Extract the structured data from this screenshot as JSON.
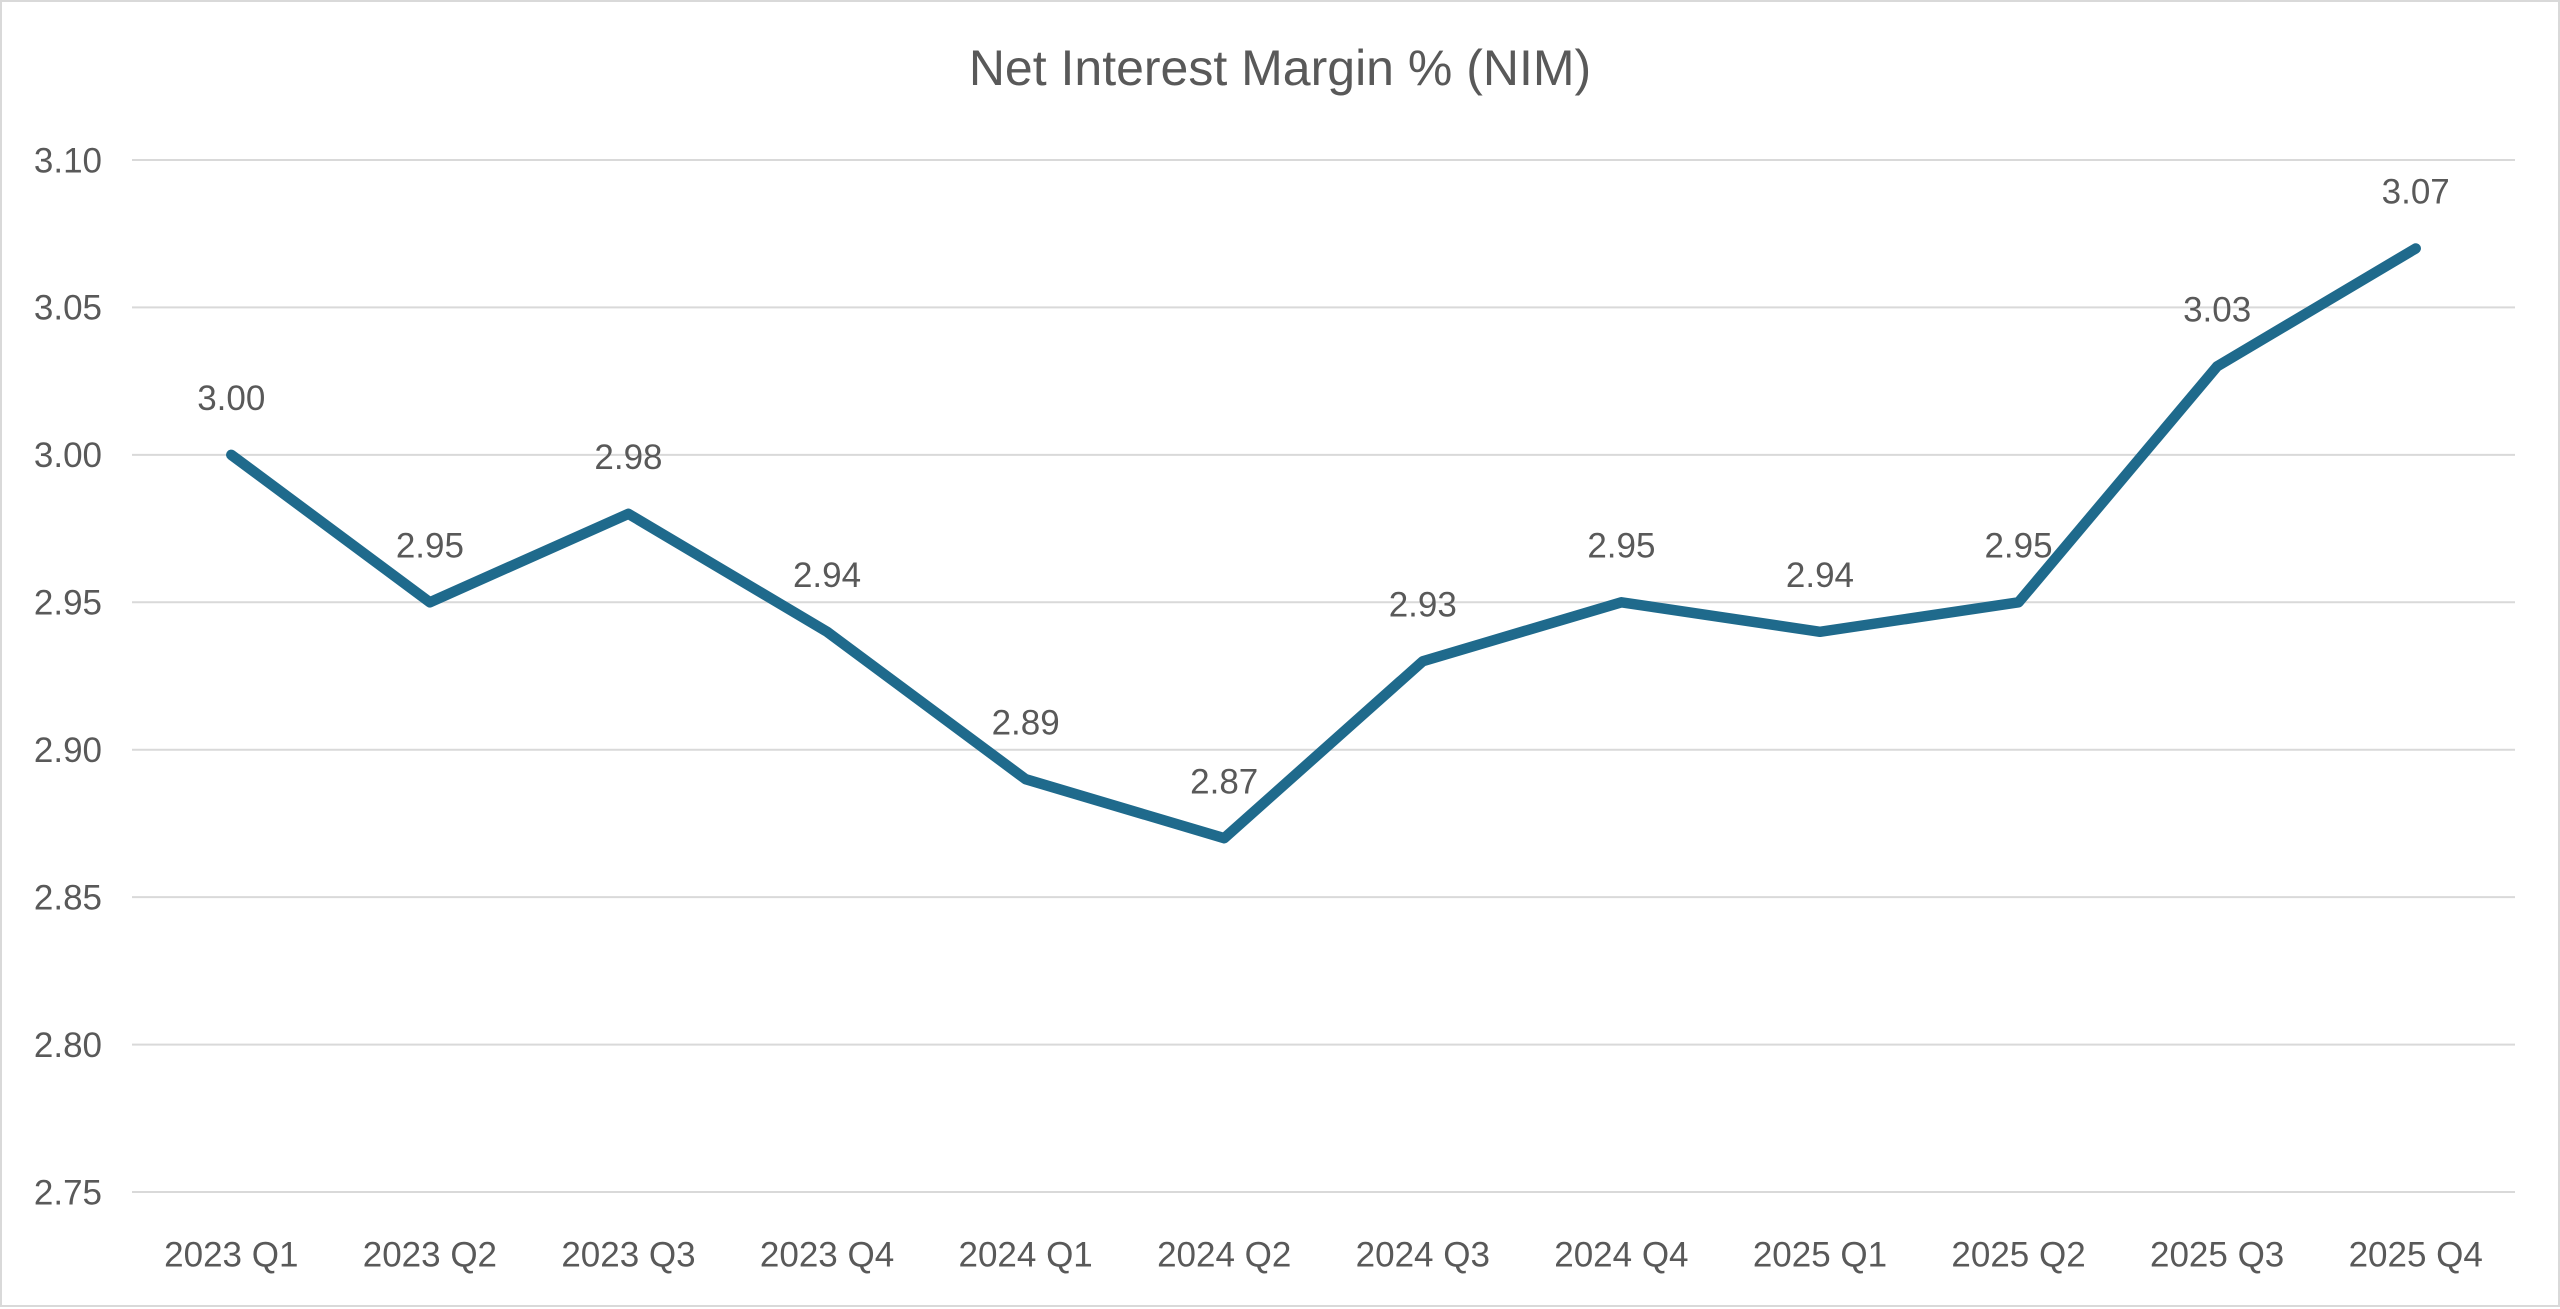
{
  "chart_data": {
    "type": "line",
    "title": "Net Interest Margin % (NIM)",
    "categories": [
      "2023 Q1",
      "2023 Q2",
      "2023 Q3",
      "2023 Q4",
      "2024 Q1",
      "2024 Q2",
      "2024 Q3",
      "2024 Q4",
      "2025 Q1",
      "2025 Q2",
      "2025 Q3",
      "2025 Q4"
    ],
    "values": [
      3.0,
      2.95,
      2.98,
      2.94,
      2.89,
      2.87,
      2.93,
      2.95,
      2.94,
      2.95,
      3.03,
      3.07
    ],
    "data_labels": [
      "3.00",
      "2.95",
      "2.98",
      "2.94",
      "2.89",
      "2.87",
      "2.93",
      "2.95",
      "2.94",
      "2.95",
      "3.03",
      "3.07"
    ],
    "yticks": [
      3.1,
      3.05,
      3.0,
      2.95,
      2.9,
      2.85,
      2.8,
      2.75
    ],
    "ytick_labels": [
      "3.10",
      "3.05",
      "3.00",
      "2.95",
      "2.90",
      "2.85",
      "2.80",
      "2.75"
    ],
    "ylim": [
      2.75,
      3.1
    ],
    "xlabel": "",
    "ylabel": "",
    "grid": true,
    "legend_position": "none",
    "colors": {
      "line": "#1F6A8C",
      "text": "#595959",
      "gridline": "#D9D9D9",
      "frame_border": "#D9D9D9",
      "background": "#FFFFFF"
    }
  }
}
